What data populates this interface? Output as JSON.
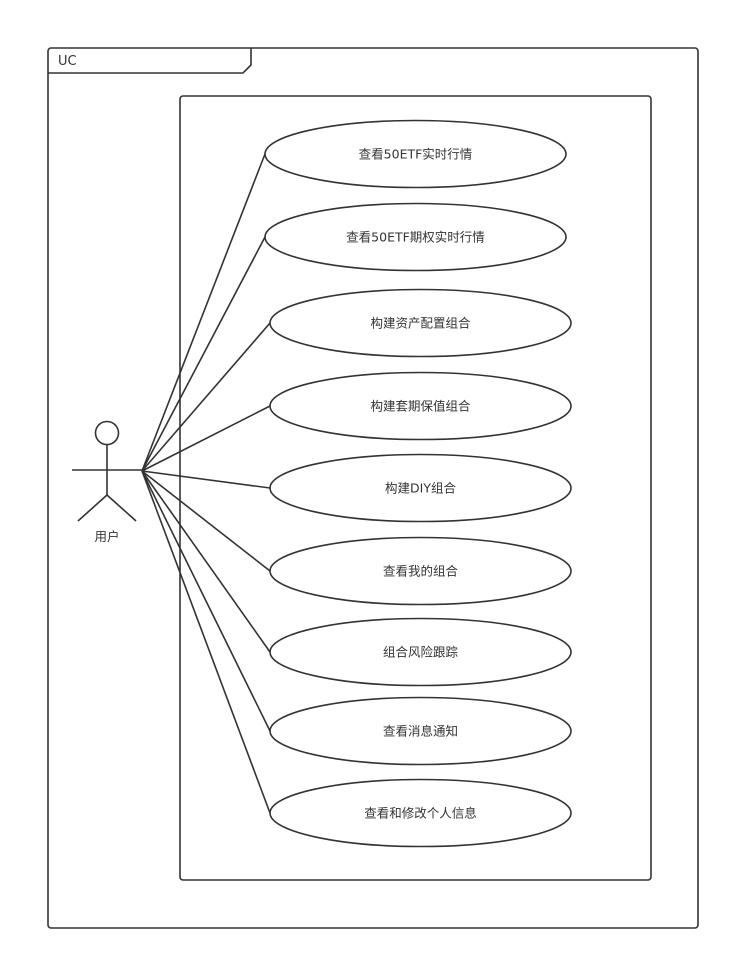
{
  "diagram": {
    "frame_title": "UC",
    "actor": {
      "label": "用户"
    },
    "use_cases": [
      {
        "label": "查看50ETF实时行情"
      },
      {
        "label": "查看50ETF期权实时行情"
      },
      {
        "label": "构建资产配置组合"
      },
      {
        "label": "构建套期保值组合"
      },
      {
        "label": "构建DIY组合"
      },
      {
        "label": "查看我的组合"
      },
      {
        "label": "组合风险跟踪"
      },
      {
        "label": "查看消息通知"
      },
      {
        "label": "查看和修改个人信息"
      }
    ],
    "colors": {
      "line": "#333333",
      "background": "#ffffff"
    }
  }
}
